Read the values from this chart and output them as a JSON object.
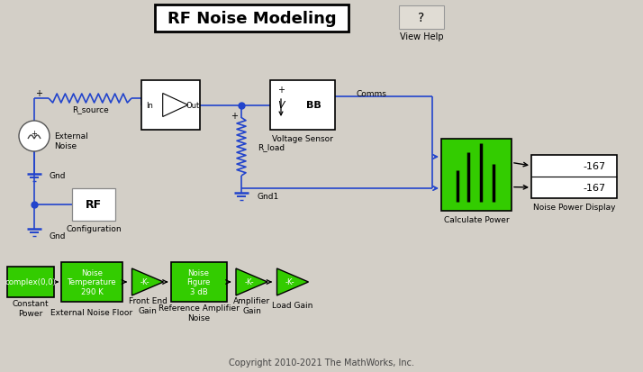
{
  "title": "RF Noise Modeling",
  "background_color": "#d3cfc7",
  "block_green": "#33cc00",
  "block_white": "#ffffff",
  "block_border": "#000000",
  "line_blue": "#2244cc",
  "line_black": "#000000",
  "copyright": "Copyright 2010-2021 The MathWorks, Inc.",
  "fig_w": 7.14,
  "fig_h": 4.14,
  "dpi": 100,
  "labels": {
    "r_source": "R_source",
    "external_noise": "External\nNoise",
    "r_load": "R_load",
    "gnd1": "Gnd1",
    "gnd": "Gnd",
    "configuration": "Configuration",
    "voltage_sensor": "Voltage Sensor",
    "comms": "Comms",
    "bb": "BB",
    "calculate_power": "Calculate Power",
    "noise_power_display": "Noise Power Display",
    "constant_power": "Constant\nPower",
    "external_noise_floor": "External Noise Floor",
    "front_end_gain": "Front End\nGain",
    "ref_amp_noise": "Reference Amplifier\nNoise",
    "amplifier_gain": "Amplifier\nGain",
    "load_gain": "Load Gain",
    "view_help": "View Help",
    "complex": "complex(0,0)",
    "noise_temp": "Noise\nTemperature\n290 K",
    "noise_figure": "Noise\nFigure\n3 dB",
    "display_val": "-167",
    "in_label": "In",
    "out_label": "Out"
  }
}
